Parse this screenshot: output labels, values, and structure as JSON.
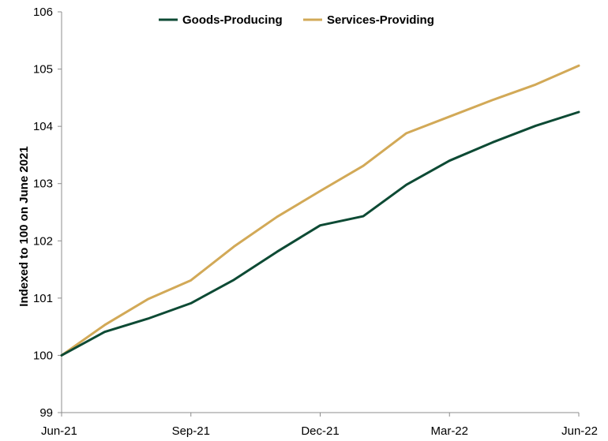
{
  "chart_data": {
    "type": "line",
    "x": [
      "Jun-21",
      "Jul-21",
      "Aug-21",
      "Sep-21",
      "Oct-21",
      "Nov-21",
      "Dec-21",
      "Jan-22",
      "Feb-22",
      "Mar-22",
      "Apr-22",
      "May-22",
      "Jun-22"
    ],
    "x_tick_labels": [
      "Jun-21",
      "Sep-21",
      "Dec-21",
      "Mar-22",
      "Jun-22"
    ],
    "series": [
      {
        "name": "Goods-Producing",
        "color": "#0d4a34",
        "values": [
          100.0,
          100.41,
          100.64,
          100.91,
          101.32,
          101.81,
          102.27,
          102.43,
          102.98,
          103.4,
          103.72,
          104.01,
          104.25
        ]
      },
      {
        "name": "Services-Providing",
        "color": "#d2a957",
        "values": [
          100.0,
          100.53,
          100.98,
          101.31,
          101.9,
          102.42,
          102.87,
          103.31,
          103.88,
          104.17,
          104.46,
          104.73,
          105.06
        ]
      }
    ],
    "ylabel": "Indexed to 100 on June 2021",
    "xlabel": "",
    "title": "",
    "ylim": [
      99,
      106
    ],
    "y_ticks": [
      99,
      100,
      101,
      102,
      103,
      104,
      105,
      106
    ],
    "grid": false,
    "legend": "top-center"
  }
}
